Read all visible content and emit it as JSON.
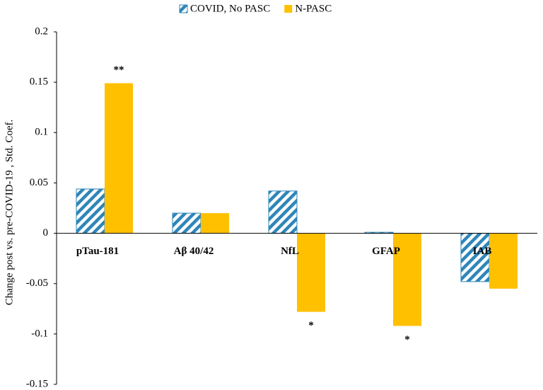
{
  "chart_data": {
    "type": "bar",
    "y_axis_label": "Change post vs. pre-COVID-19 , Std. Coef.",
    "categories": [
      "pTau-181",
      "Aβ 40/42",
      "NfL",
      "GFAP",
      "IAB"
    ],
    "series": [
      {
        "name": "COVID, No PASC",
        "color": "#2e86b8",
        "pattern": "hatch",
        "values": [
          0.044,
          0.02,
          0.042,
          0.001,
          -0.048
        ]
      },
      {
        "name": "N-PASC",
        "color": "#ffc000",
        "values": [
          0.149,
          0.02,
          -0.078,
          -0.092,
          -0.055
        ]
      }
    ],
    "annotations": [
      {
        "text": "**",
        "category": 0,
        "series": 1
      },
      {
        "text": "*",
        "category": 2,
        "series": 1
      },
      {
        "text": "*",
        "category": 3,
        "series": 1
      }
    ],
    "ylim": [
      -0.15,
      0.2
    ],
    "yticks": [
      -0.15,
      -0.1,
      -0.05,
      0,
      0.05,
      0.1,
      0.15,
      0.2
    ],
    "grid": false,
    "legend": "top"
  }
}
